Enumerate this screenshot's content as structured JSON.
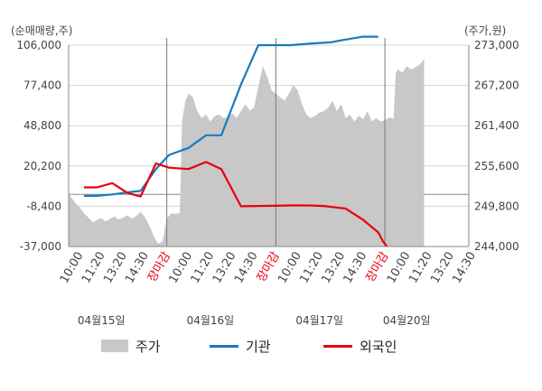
{
  "chart_data": {
    "type": "line",
    "left_axis": {
      "unit_label": "(순매매량,주)",
      "ticks": [
        106000,
        77400,
        48800,
        20200,
        -8400,
        -37000
      ],
      "tick_labels": [
        "106,000",
        "77,400",
        "48,800",
        "20,200",
        "-8,400",
        "-37,000"
      ],
      "ylim": [
        -37000,
        106000
      ]
    },
    "right_axis": {
      "unit_label": "(주가,원)",
      "ticks": [
        273000,
        267200,
        261400,
        255600,
        249800,
        244000
      ],
      "tick_labels": [
        "273,000",
        "267,200",
        "261,400",
        "255,600",
        "249,800",
        "244,000"
      ],
      "ylim": [
        244000,
        273000
      ]
    },
    "x_categories": [
      "10:00",
      "11:20",
      "13:20",
      "14:30",
      "장마감",
      "10:00",
      "11:20",
      "13:20",
      "14:30",
      "장마감",
      "10:00",
      "11:20",
      "13:20",
      "14:30",
      "장마감",
      "10:00",
      "11:20",
      "13:20",
      "14:30"
    ],
    "date_labels": [
      {
        "text": "04월15일",
        "index": 1
      },
      {
        "text": "04월16일",
        "index": 6
      },
      {
        "text": "04월17일",
        "index": 11
      },
      {
        "text": "04월20일",
        "index": 15
      }
    ],
    "session_dividers": [
      4,
      9,
      14
    ],
    "series": [
      {
        "name": "주가",
        "kind": "area",
        "axis": "right",
        "color": "#c8c8c8",
        "values": [
          [
            -0.6,
            251.6
          ],
          [
            -0.4,
            251.2
          ],
          [
            -0.2,
            250.3
          ],
          [
            0.0,
            249.7
          ],
          [
            0.2,
            248.8
          ],
          [
            0.4,
            248.2
          ],
          [
            0.6,
            247.5
          ],
          [
            0.8,
            247.8
          ],
          [
            1.0,
            248.1
          ],
          [
            1.2,
            247.6
          ],
          [
            1.4,
            248.0
          ],
          [
            1.6,
            248.3
          ],
          [
            1.8,
            247.9
          ],
          [
            2.0,
            248.2
          ],
          [
            2.2,
            248.5
          ],
          [
            2.4,
            248.0
          ],
          [
            2.6,
            248.4
          ],
          [
            2.8,
            249.0
          ],
          [
            3.0,
            248.2
          ],
          [
            3.2,
            247.0
          ],
          [
            3.4,
            245.5
          ],
          [
            3.6,
            244.4
          ],
          [
            3.8,
            244.7
          ],
          [
            4.0,
            248.0
          ],
          [
            4.2,
            248.8
          ],
          [
            4.4,
            248.7
          ],
          [
            4.6,
            248.8
          ],
          [
            4.7,
            262.0
          ],
          [
            4.85,
            265.0
          ],
          [
            5.0,
            266.0
          ],
          [
            5.2,
            265.5
          ],
          [
            5.4,
            263.5
          ],
          [
            5.6,
            262.5
          ],
          [
            5.8,
            263.0
          ],
          [
            6.0,
            262.0
          ],
          [
            6.2,
            262.8
          ],
          [
            6.4,
            263.0
          ],
          [
            6.6,
            262.5
          ],
          [
            6.8,
            262.7
          ],
          [
            7.0,
            263.2
          ],
          [
            7.2,
            262.5
          ],
          [
            7.4,
            263.5
          ],
          [
            7.6,
            264.5
          ],
          [
            7.8,
            263.6
          ],
          [
            8.0,
            264.0
          ],
          [
            8.2,
            267.0
          ],
          [
            8.4,
            270.0
          ],
          [
            8.6,
            268.5
          ],
          [
            8.8,
            266.5
          ],
          [
            9.0,
            266.0
          ],
          [
            9.2,
            265.5
          ],
          [
            9.4,
            265.0
          ],
          [
            9.6,
            266.0
          ],
          [
            9.8,
            267.2
          ],
          [
            10.0,
            266.5
          ],
          [
            10.2,
            264.5
          ],
          [
            10.4,
            263.0
          ],
          [
            10.6,
            262.5
          ],
          [
            10.8,
            262.8
          ],
          [
            11.0,
            263.3
          ],
          [
            11.2,
            263.5
          ],
          [
            11.4,
            264.0
          ],
          [
            11.6,
            265.0
          ],
          [
            11.8,
            263.5
          ],
          [
            12.0,
            264.5
          ],
          [
            12.2,
            262.5
          ],
          [
            12.4,
            263.0
          ],
          [
            12.6,
            262.0
          ],
          [
            12.8,
            262.8
          ],
          [
            13.0,
            262.3
          ],
          [
            13.2,
            263.5
          ],
          [
            13.4,
            262.0
          ],
          [
            13.6,
            262.5
          ],
          [
            13.8,
            262.0
          ],
          [
            14.0,
            262.2
          ],
          [
            14.2,
            262.6
          ],
          [
            14.4,
            262.4
          ],
          [
            14.5,
            269.0
          ],
          [
            14.6,
            269.5
          ],
          [
            14.8,
            269.0
          ],
          [
            15.0,
            270.0
          ],
          [
            15.2,
            269.5
          ],
          [
            15.4,
            269.8
          ],
          [
            15.6,
            270.2
          ],
          [
            15.8,
            271.0
          ]
        ]
      },
      {
        "name": "기관",
        "kind": "line",
        "axis": "left",
        "color": "#1a7abf",
        "values": [
          [
            0.2,
            -1000
          ],
          [
            0.8,
            -1000
          ],
          [
            1.5,
            0
          ],
          [
            2.2,
            1500
          ],
          [
            2.8,
            2500
          ],
          [
            3.5,
            18000
          ],
          [
            4.1,
            28000
          ],
          [
            5.0,
            33000
          ],
          [
            5.8,
            42000
          ],
          [
            6.5,
            42000
          ],
          [
            7.4,
            78000
          ],
          [
            8.2,
            106000
          ],
          [
            9.7,
            106000
          ],
          [
            10.5,
            107000
          ],
          [
            11.5,
            108000
          ],
          [
            12.2,
            110000
          ],
          [
            13.0,
            112000
          ],
          [
            13.7,
            112000
          ]
        ]
      },
      {
        "name": "외국인",
        "kind": "line",
        "axis": "left",
        "color": "#e8000b",
        "values": [
          [
            0.2,
            5000
          ],
          [
            0.8,
            5000
          ],
          [
            1.5,
            8000
          ],
          [
            2.2,
            1000
          ],
          [
            2.8,
            -1500
          ],
          [
            3.5,
            22000
          ],
          [
            4.1,
            19000
          ],
          [
            5.0,
            18000
          ],
          [
            5.8,
            23000
          ],
          [
            6.5,
            18000
          ],
          [
            7.4,
            -8400
          ],
          [
            8.2,
            -8200
          ],
          [
            9.7,
            -7800
          ],
          [
            10.5,
            -7800
          ],
          [
            11.2,
            -8200
          ],
          [
            12.2,
            -10000
          ],
          [
            13.0,
            -18000
          ],
          [
            13.7,
            -27000
          ],
          [
            13.9,
            -33000
          ],
          [
            14.1,
            -37000
          ]
        ]
      }
    ],
    "legend": {
      "position": "bottom",
      "entries": [
        "주가",
        "기관",
        "외국인"
      ]
    }
  },
  "colors": {
    "price_area": "#c8c8c8",
    "institution": "#1a7abf",
    "foreigner": "#e8000b",
    "grid": "#d4d4d4",
    "axis": "#888888",
    "divider": "#777777"
  }
}
